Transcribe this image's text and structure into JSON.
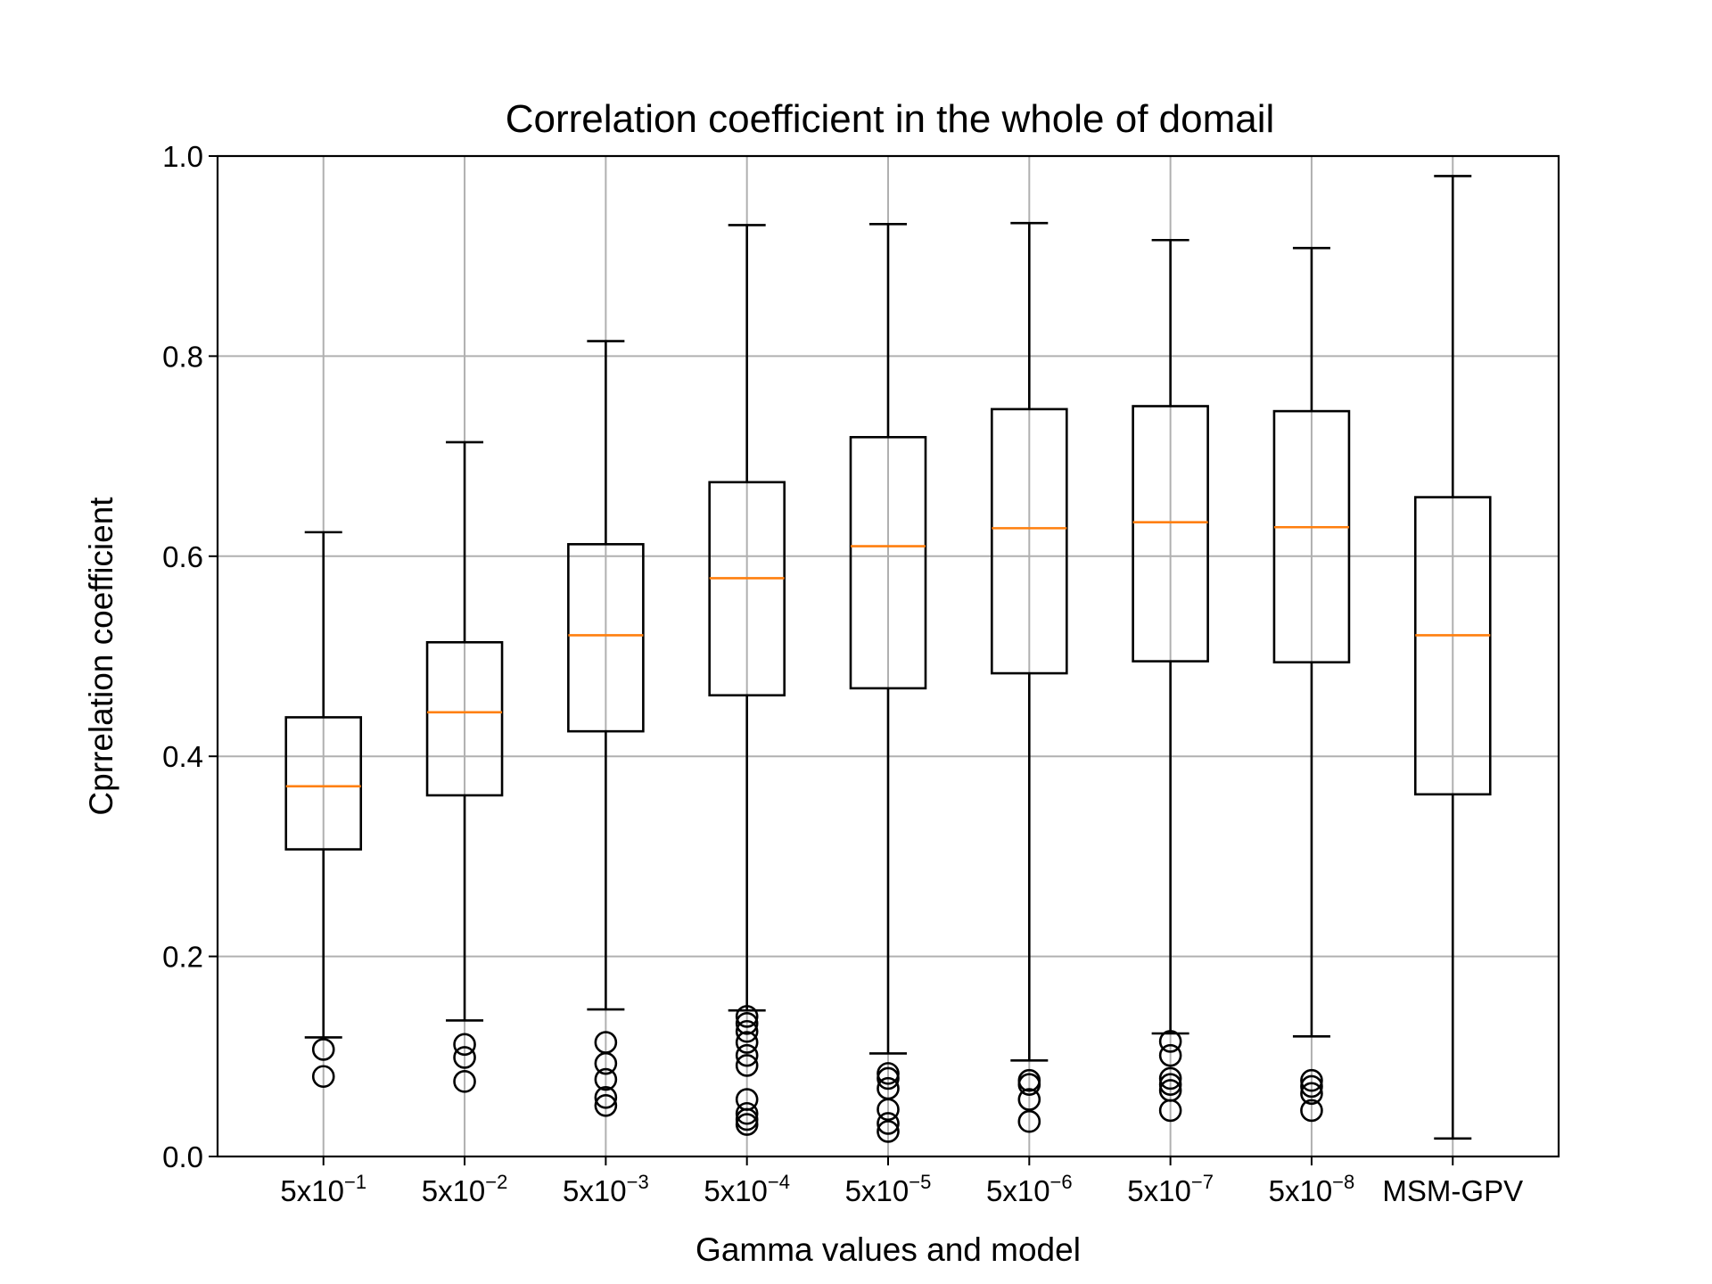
{
  "chart_data": {
    "type": "box",
    "title": "Correlation coefficient in the whole of domail",
    "xlabel": "Gamma values and model",
    "ylabel": "Cprrelation coefficient",
    "ylim": [
      0.0,
      1.0
    ],
    "yticks": [
      "0.0",
      "0.2",
      "0.4",
      "0.6",
      "0.8",
      "1.0"
    ],
    "grid": true,
    "categories": [
      {
        "base": "5x10",
        "exp": "−1"
      },
      {
        "base": "5x10",
        "exp": "−2"
      },
      {
        "base": "5x10",
        "exp": "−3"
      },
      {
        "base": "5x10",
        "exp": "−4"
      },
      {
        "base": "5x10",
        "exp": "−5"
      },
      {
        "base": "5x10",
        "exp": "−6"
      },
      {
        "base": "5x10",
        "exp": "−7"
      },
      {
        "base": "5x10",
        "exp": "−8"
      },
      {
        "base": "MSM-GPV",
        "exp": ""
      }
    ],
    "boxes": [
      {
        "whisker_low": 0.119,
        "q1": 0.307,
        "median": 0.37,
        "q3": 0.439,
        "whisker_high": 0.624,
        "outliers": [
          0.107,
          0.08
        ]
      },
      {
        "whisker_low": 0.136,
        "q1": 0.361,
        "median": 0.444,
        "q3": 0.514,
        "whisker_high": 0.714,
        "outliers": [
          0.112,
          0.099,
          0.075
        ]
      },
      {
        "whisker_low": 0.147,
        "q1": 0.425,
        "median": 0.521,
        "q3": 0.612,
        "whisker_high": 0.815,
        "outliers": [
          0.114,
          0.093,
          0.077,
          0.059,
          0.051
        ]
      },
      {
        "whisker_low": 0.146,
        "q1": 0.461,
        "median": 0.578,
        "q3": 0.674,
        "whisker_high": 0.931,
        "outliers": [
          0.14,
          0.133,
          0.125,
          0.114,
          0.101,
          0.091,
          0.057,
          0.043,
          0.037,
          0.032
        ]
      },
      {
        "whisker_low": 0.103,
        "q1": 0.468,
        "median": 0.61,
        "q3": 0.719,
        "whisker_high": 0.932,
        "outliers": [
          0.083,
          0.078,
          0.068,
          0.047,
          0.033,
          0.025
        ]
      },
      {
        "whisker_low": 0.096,
        "q1": 0.483,
        "median": 0.628,
        "q3": 0.747,
        "whisker_high": 0.933,
        "outliers": [
          0.076,
          0.072,
          0.057,
          0.035
        ]
      },
      {
        "whisker_low": 0.123,
        "q1": 0.495,
        "median": 0.634,
        "q3": 0.75,
        "whisker_high": 0.916,
        "outliers": [
          0.115,
          0.101,
          0.078,
          0.072,
          0.066,
          0.046
        ]
      },
      {
        "whisker_low": 0.12,
        "q1": 0.494,
        "median": 0.629,
        "q3": 0.745,
        "whisker_high": 0.908,
        "outliers": [
          0.076,
          0.07,
          0.063,
          0.046
        ]
      },
      {
        "whisker_low": 0.018,
        "q1": 0.362,
        "median": 0.521,
        "q3": 0.659,
        "whisker_high": 0.98,
        "outliers": []
      }
    ],
    "colors": {
      "box": "#000000",
      "median": "#ff7f0e",
      "grid": "#b0b0b0"
    }
  }
}
